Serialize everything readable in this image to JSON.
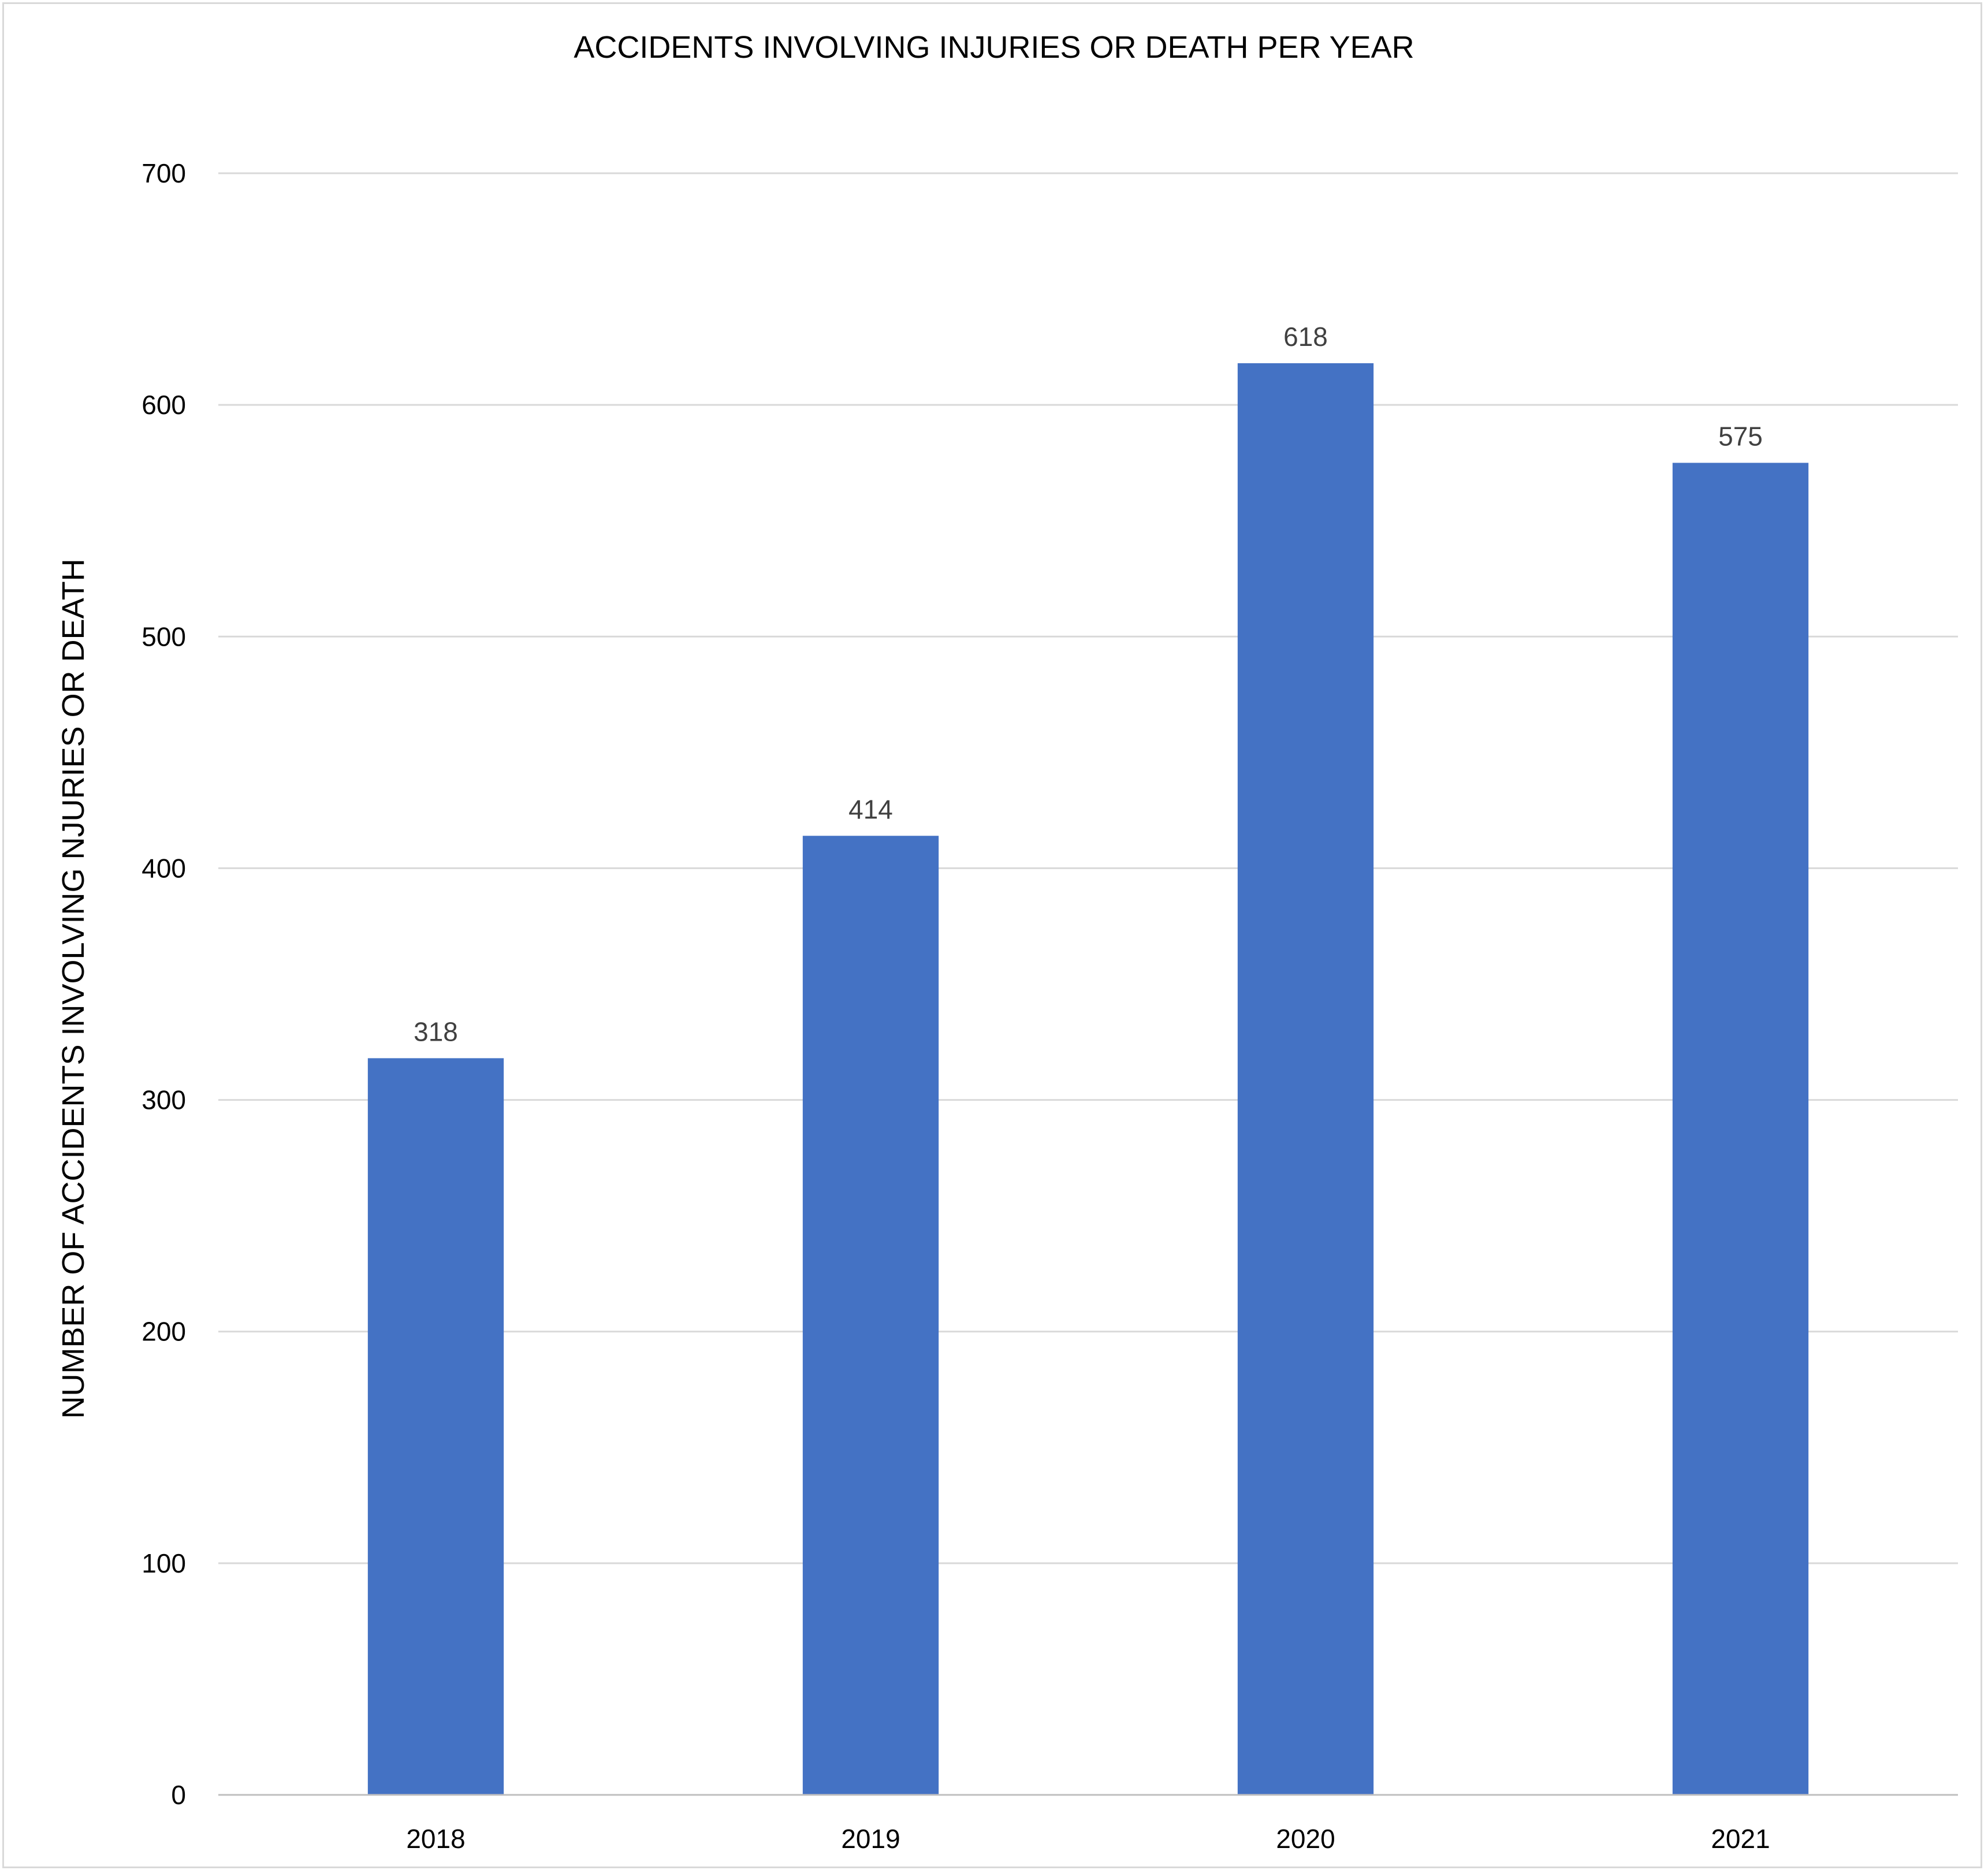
{
  "chart_data": {
    "type": "bar",
    "title": "ACCIDENTS INVOLVING INJURIES OR DEATH PER YEAR",
    "xlabel": "",
    "ylabel": "NUMBER OF ACCIDENTS INVOLVING NJURIES OR DEATH",
    "categories": [
      "2018",
      "2019",
      "2020",
      "2021"
    ],
    "values": [
      318,
      414,
      618,
      575
    ],
    "data_labels": [
      "318",
      "414",
      "618",
      "575"
    ],
    "ylim": [
      0,
      700
    ],
    "yticks": [
      0,
      100,
      200,
      300,
      400,
      500,
      600,
      700
    ],
    "grid": true,
    "legend": "none",
    "bar_color": "#4472C4"
  }
}
